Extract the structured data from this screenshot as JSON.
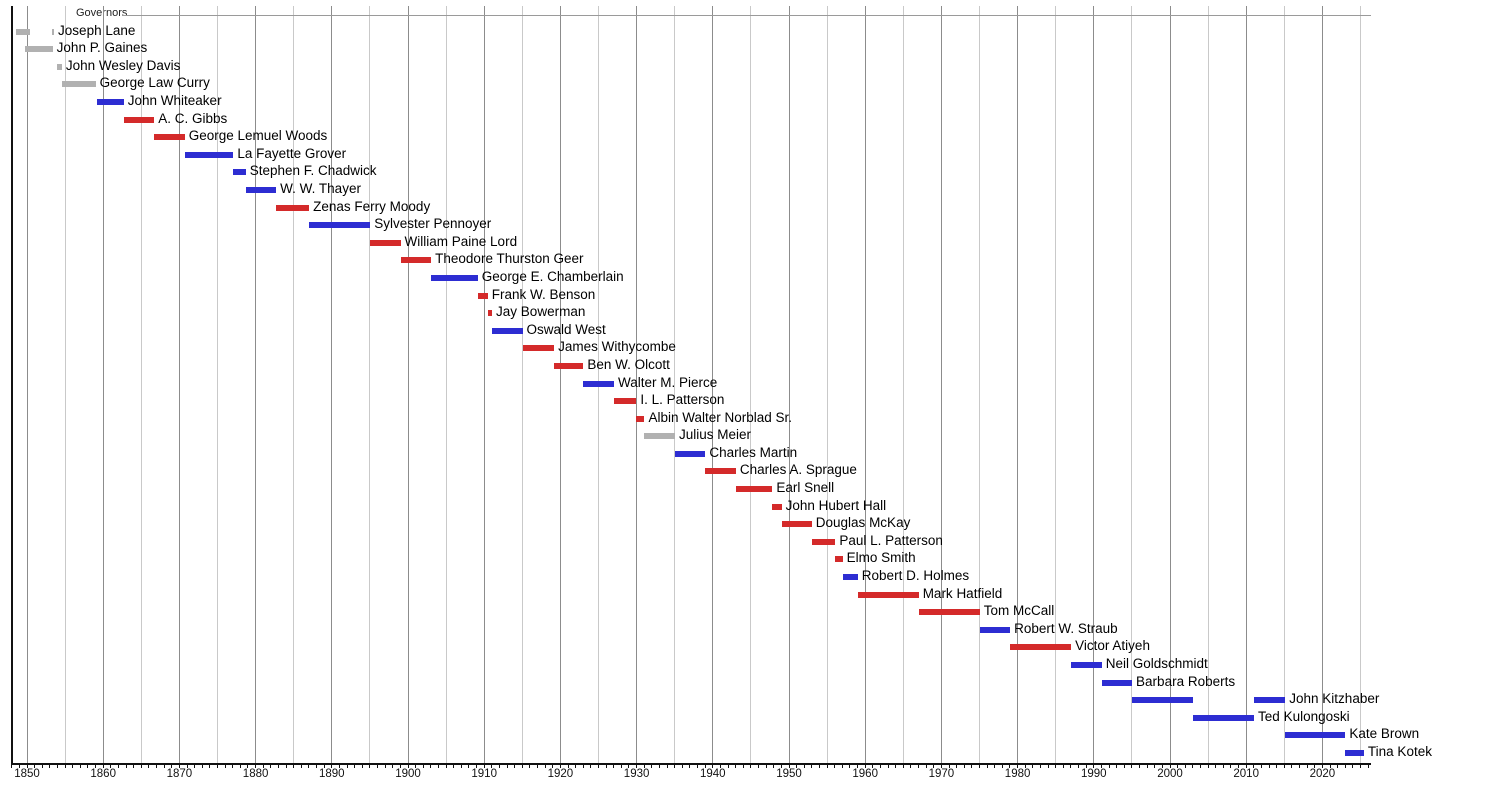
{
  "page": {
    "background": "#ffffff"
  },
  "chart_data": {
    "type": "timeline",
    "title": "Governors",
    "x_axis": {
      "min": 1848,
      "max": 2026,
      "label_interval": 10,
      "gridline_interval": 5,
      "minor_tick_interval": 1,
      "tick_labels": [
        "1850",
        "1860",
        "1870",
        "1880",
        "1890",
        "1900",
        "1910",
        "1920",
        "1930",
        "1940",
        "1950",
        "1960",
        "1970",
        "1980",
        "1990",
        "2000",
        "2010",
        "2020"
      ]
    },
    "colors": {
      "blue": "#2d2dd2",
      "red": "#d42a2a",
      "gray": "#b1b1b1",
      "gridline_major": "#8c8c8c",
      "gridline_minor": "#c9c9c9",
      "axis": "#111111",
      "top_line": "#9a9a9a"
    },
    "governors": [
      {
        "name": "Joseph Lane",
        "color": "gray",
        "terms": [
          [
            1848.55,
            1850.46
          ],
          [
            1853.3,
            1853.55
          ]
        ]
      },
      {
        "name": "John P. Gaines",
        "color": "gray",
        "terms": [
          [
            1849.8,
            1853.37
          ]
        ]
      },
      {
        "name": "John Wesley Davis",
        "color": "gray",
        "terms": [
          [
            1853.92,
            1854.58
          ]
        ]
      },
      {
        "name": "George Law Curry",
        "color": "gray",
        "terms": [
          [
            1854.6,
            1859.0
          ]
        ]
      },
      {
        "name": "John Whiteaker",
        "color": "blue",
        "terms": [
          [
            1859.17,
            1862.7
          ]
        ]
      },
      {
        "name": "A. C. Gibbs",
        "color": "red",
        "terms": [
          [
            1862.7,
            1866.7
          ]
        ]
      },
      {
        "name": "George Lemuel Woods",
        "color": "red",
        "terms": [
          [
            1866.7,
            1870.7
          ]
        ]
      },
      {
        "name": "La Fayette Grover",
        "color": "blue",
        "terms": [
          [
            1870.7,
            1877.08
          ]
        ]
      },
      {
        "name": "Stephen F. Chadwick",
        "color": "blue",
        "terms": [
          [
            1877.08,
            1878.7
          ]
        ]
      },
      {
        "name": "W. W. Thayer",
        "color": "blue",
        "terms": [
          [
            1878.7,
            1882.7
          ]
        ]
      },
      {
        "name": "Zenas Ferry Moody",
        "color": "red",
        "terms": [
          [
            1882.7,
            1887.03
          ]
        ]
      },
      {
        "name": "Sylvester Pennoyer",
        "color": "blue",
        "terms": [
          [
            1887.03,
            1895.04
          ]
        ]
      },
      {
        "name": "William Paine Lord",
        "color": "red",
        "terms": [
          [
            1895.04,
            1899.02
          ]
        ]
      },
      {
        "name": "Theodore Thurston Geer",
        "color": "red",
        "terms": [
          [
            1899.02,
            1903.04
          ]
        ]
      },
      {
        "name": "George E. Chamberlain",
        "color": "blue",
        "terms": [
          [
            1903.04,
            1909.16
          ]
        ]
      },
      {
        "name": "Frank W. Benson",
        "color": "red",
        "terms": [
          [
            1909.16,
            1910.46
          ]
        ]
      },
      {
        "name": "Jay Bowerman",
        "color": "red",
        "terms": [
          [
            1910.46,
            1911.03
          ]
        ]
      },
      {
        "name": "Oswald West",
        "color": "blue",
        "terms": [
          [
            1911.03,
            1915.03
          ]
        ]
      },
      {
        "name": "James Withycombe",
        "color": "red",
        "terms": [
          [
            1915.03,
            1919.17
          ]
        ]
      },
      {
        "name": "Ben W. Olcott",
        "color": "red",
        "terms": [
          [
            1919.17,
            1923.02
          ]
        ]
      },
      {
        "name": "Walter M. Pierce",
        "color": "blue",
        "terms": [
          [
            1923.02,
            1927.03
          ]
        ]
      },
      {
        "name": "I. L. Patterson",
        "color": "red",
        "terms": [
          [
            1927.03,
            1929.97
          ]
        ]
      },
      {
        "name": "Albin Walter Norblad Sr.",
        "color": "red",
        "terms": [
          [
            1929.97,
            1931.03
          ]
        ]
      },
      {
        "name": "Julius Meier",
        "color": "gray",
        "terms": [
          [
            1931.03,
            1935.04
          ]
        ]
      },
      {
        "name": "Charles Martin",
        "color": "blue",
        "terms": [
          [
            1935.04,
            1939.02
          ]
        ]
      },
      {
        "name": "Charles A. Sprague",
        "color": "red",
        "terms": [
          [
            1939.02,
            1943.03
          ]
        ]
      },
      {
        "name": "Earl Snell",
        "color": "red",
        "terms": [
          [
            1943.03,
            1947.82
          ]
        ]
      },
      {
        "name": "John Hubert Hall",
        "color": "red",
        "terms": [
          [
            1947.83,
            1949.03
          ]
        ]
      },
      {
        "name": "Douglas McKay",
        "color": "red",
        "terms": [
          [
            1949.03,
            1952.99
          ]
        ]
      },
      {
        "name": "Paul L. Patterson",
        "color": "red",
        "terms": [
          [
            1952.99,
            1956.08
          ]
        ]
      },
      {
        "name": "Elmo Smith",
        "color": "red",
        "terms": [
          [
            1956.09,
            1957.04
          ]
        ]
      },
      {
        "name": "Robert D. Holmes",
        "color": "blue",
        "terms": [
          [
            1957.04,
            1959.03
          ]
        ]
      },
      {
        "name": "Mark Hatfield",
        "color": "red",
        "terms": [
          [
            1959.03,
            1967.02
          ]
        ]
      },
      {
        "name": "Tom McCall",
        "color": "red",
        "terms": [
          [
            1967.02,
            1975.03
          ]
        ]
      },
      {
        "name": "Robert W. Straub",
        "color": "blue",
        "terms": [
          [
            1975.03,
            1979.02
          ]
        ]
      },
      {
        "name": "Victor Atiyeh",
        "color": "red",
        "terms": [
          [
            1979.02,
            1987.03
          ]
        ]
      },
      {
        "name": "Neil Goldschmidt",
        "color": "blue",
        "terms": [
          [
            1987.03,
            1991.04
          ]
        ]
      },
      {
        "name": "Barbara Roberts",
        "color": "blue",
        "terms": [
          [
            1991.04,
            1995.02
          ]
        ]
      },
      {
        "name": "John Kitzhaber",
        "color": "blue",
        "terms": [
          [
            1995.02,
            2003.03
          ],
          [
            2011.03,
            2015.13
          ]
        ]
      },
      {
        "name": "Ted Kulongoski",
        "color": "blue",
        "terms": [
          [
            2003.03,
            2011.03
          ]
        ]
      },
      {
        "name": "Kate Brown",
        "color": "blue",
        "terms": [
          [
            2015.13,
            2023.02
          ]
        ]
      },
      {
        "name": "Tina Kotek",
        "color": "blue",
        "terms": [
          [
            2023.02,
            2025.45
          ]
        ]
      }
    ]
  }
}
